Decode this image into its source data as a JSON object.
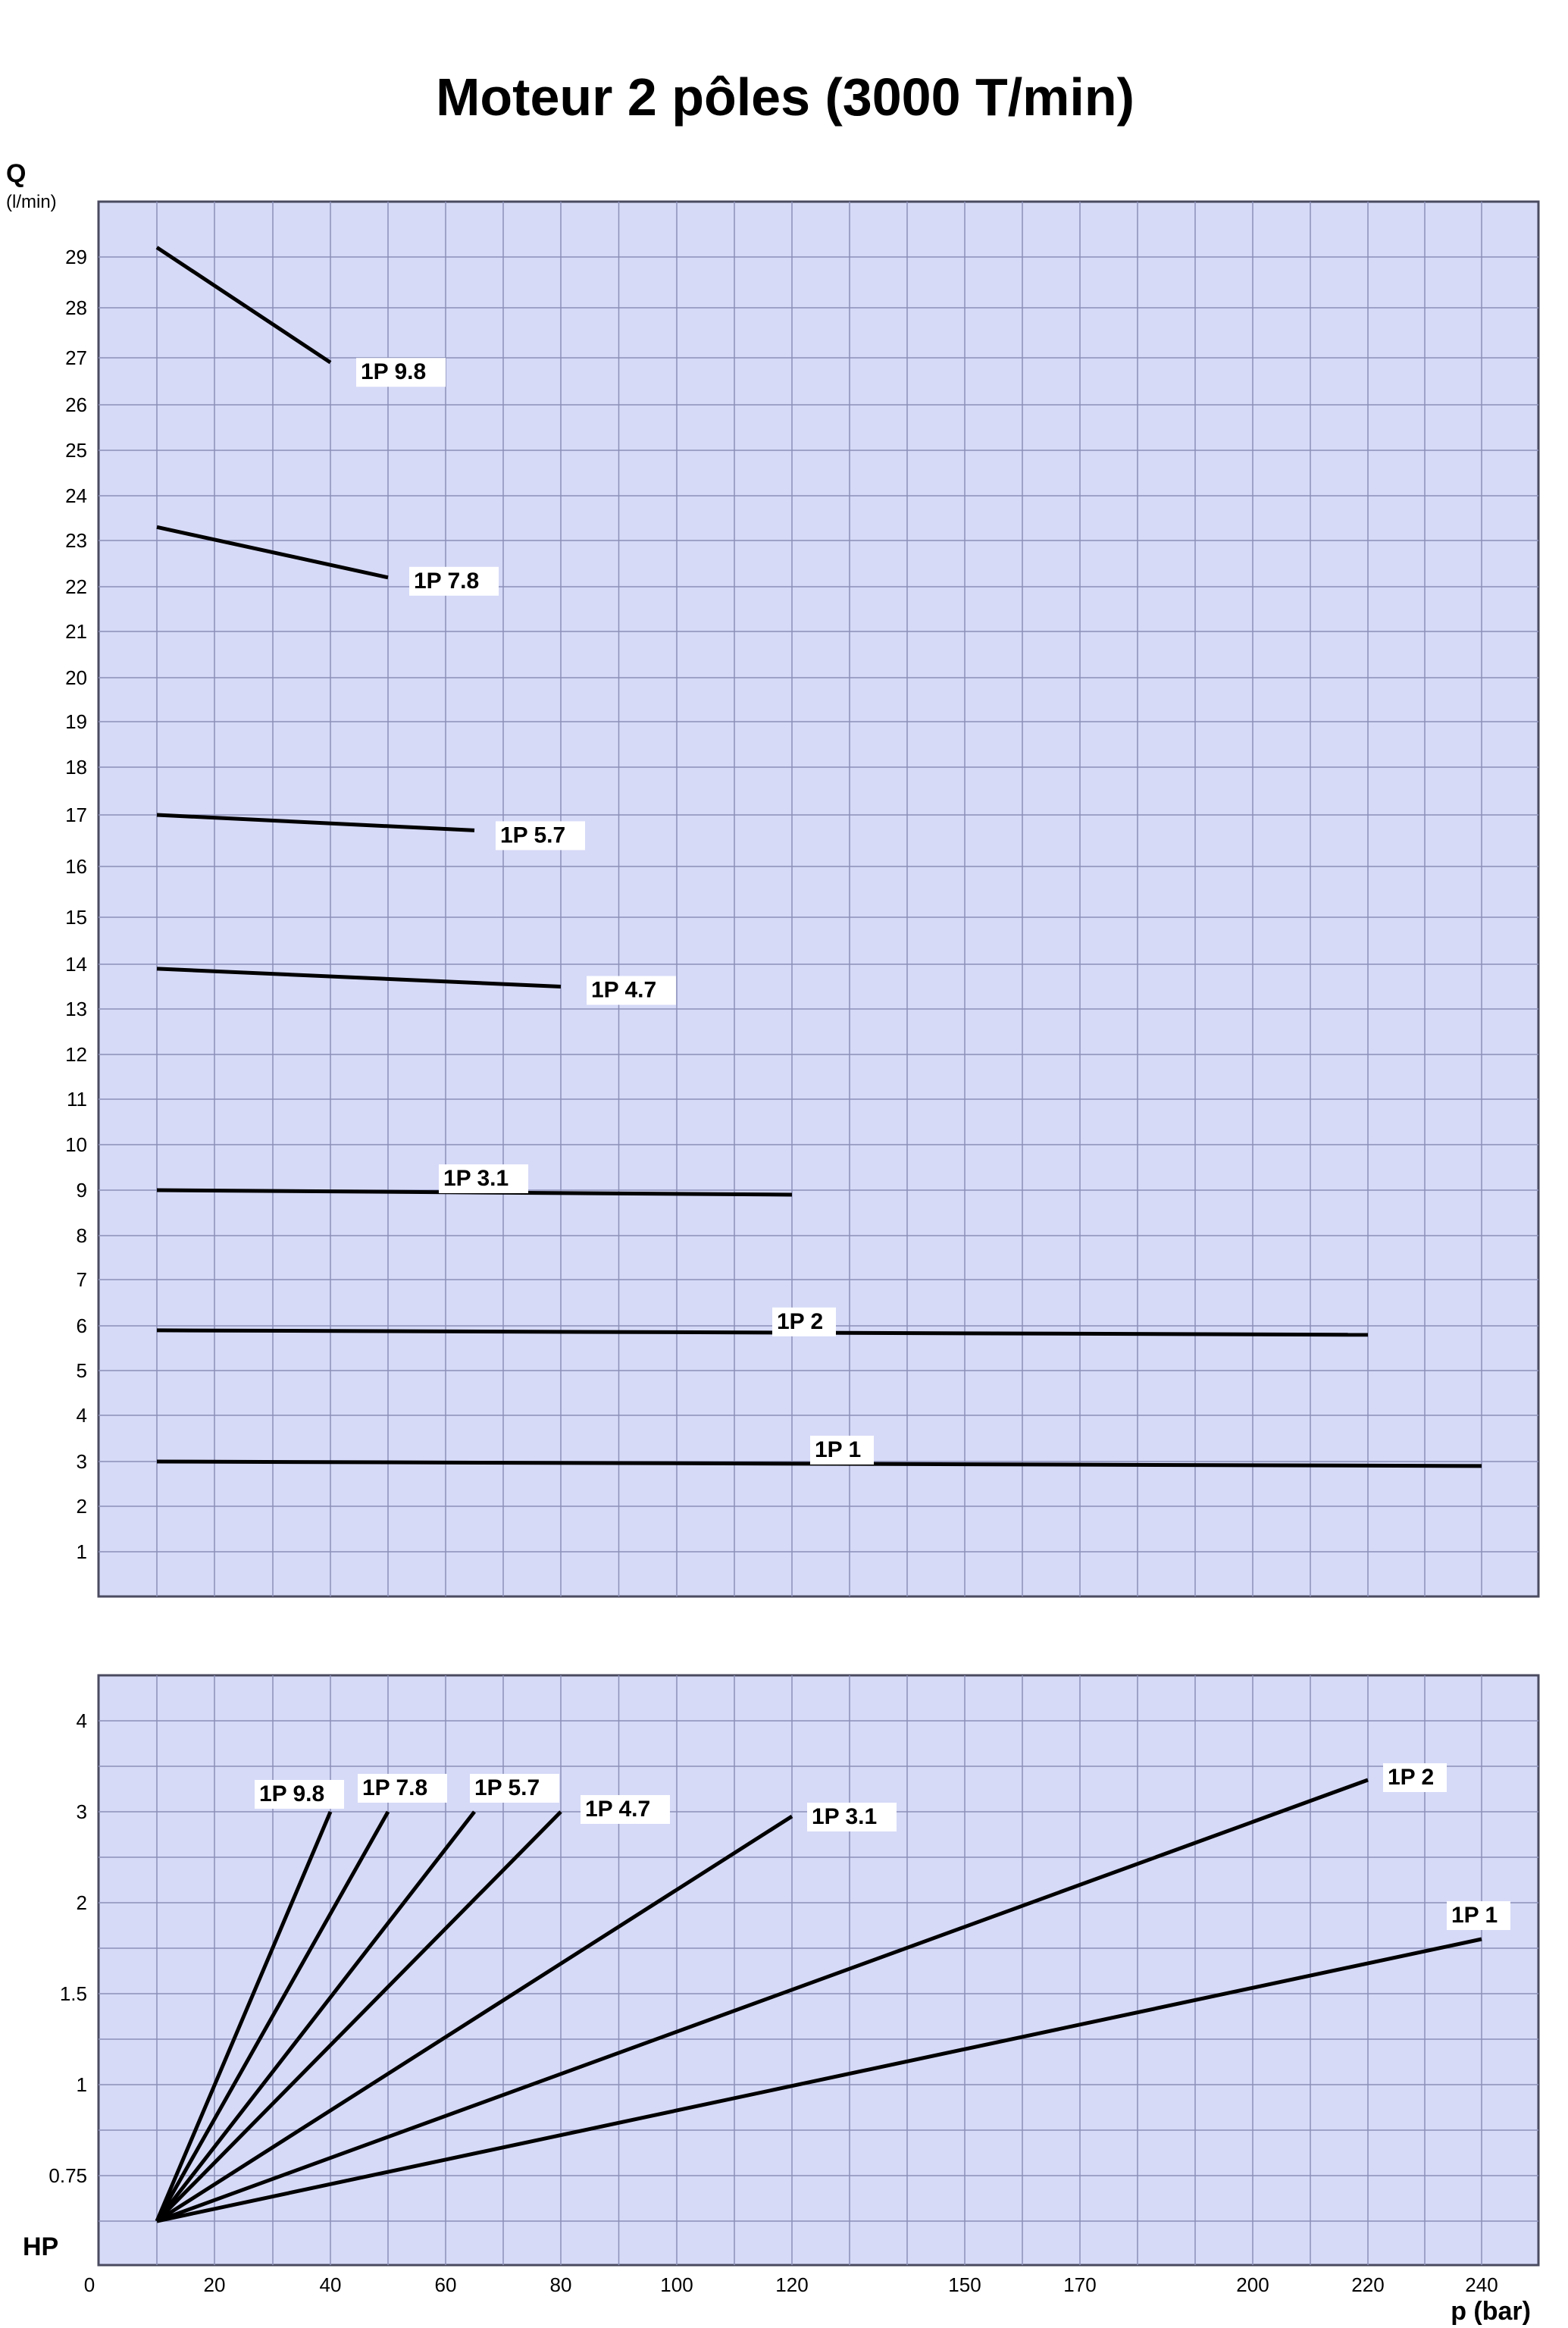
{
  "chart_data": [
    {
      "type": "line",
      "title": "Moteur 2 pôles (3000 T/min)",
      "ylabel": "Q",
      "yunit": "(l/min)",
      "yticks": [
        "1",
        "2",
        "3",
        "4",
        "5",
        "6",
        "7",
        "8",
        "9",
        "10",
        "11",
        "12",
        "13",
        "14",
        "15",
        "16",
        "17",
        "18",
        "19",
        "20",
        "21",
        "22",
        "23",
        "24",
        "25",
        "26",
        "27",
        "28",
        "29"
      ],
      "grid": true,
      "series": [
        {
          "name": "1P 9.8",
          "x": [
            10,
            40
          ],
          "y": [
            29.2,
            26.9
          ]
        },
        {
          "name": "1P 7.8",
          "x": [
            10,
            50
          ],
          "y": [
            23.3,
            22.2
          ]
        },
        {
          "name": "1P 5.7",
          "x": [
            10,
            65
          ],
          "y": [
            17.0,
            16.7
          ]
        },
        {
          "name": "1P 4.7",
          "x": [
            10,
            80
          ],
          "y": [
            13.9,
            13.5
          ]
        },
        {
          "name": "1P 3.1",
          "x": [
            10,
            120
          ],
          "y": [
            9.0,
            8.9
          ]
        },
        {
          "name": "1P 2",
          "x": [
            10,
            220
          ],
          "y": [
            5.9,
            5.8
          ]
        },
        {
          "name": "1P 1",
          "x": [
            10,
            240
          ],
          "y": [
            3.0,
            2.9
          ]
        }
      ]
    },
    {
      "type": "line",
      "ylabel": "HP",
      "xlabel": "p (bar)",
      "yticks": [
        "0.75",
        "1",
        "1.5",
        "2",
        "3",
        "4"
      ],
      "xticks": [
        "0",
        "20",
        "40",
        "60",
        "80",
        "100",
        "120",
        "150",
        "170",
        "200",
        "220",
        "240"
      ],
      "grid": true,
      "series": [
        {
          "name": "1P 9.8",
          "x": [
            10,
            40
          ],
          "y": [
            0.5,
            3
          ]
        },
        {
          "name": "1P 7.8",
          "x": [
            10,
            50
          ],
          "y": [
            0.5,
            3
          ]
        },
        {
          "name": "1P 5.7",
          "x": [
            10,
            65
          ],
          "y": [
            0.5,
            3
          ]
        },
        {
          "name": "1P 4.7",
          "x": [
            10,
            80
          ],
          "y": [
            0.5,
            3
          ]
        },
        {
          "name": "1P 3.1",
          "x": [
            10,
            120
          ],
          "y": [
            0.5,
            2.95
          ]
        },
        {
          "name": "1P 2",
          "x": [
            10,
            220
          ],
          "y": [
            0.5,
            3.35
          ]
        },
        {
          "name": "1P 1",
          "x": [
            10,
            240
          ],
          "y": [
            0.5,
            1.8
          ]
        }
      ]
    }
  ]
}
